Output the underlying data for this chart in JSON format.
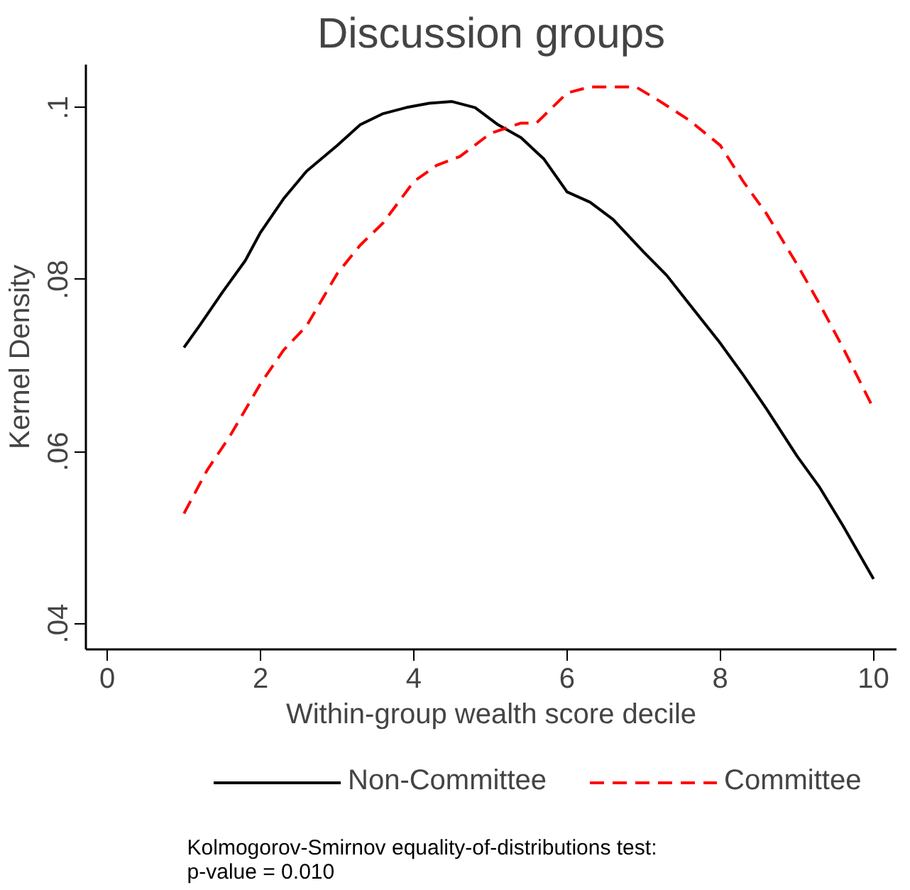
{
  "chart_data": {
    "type": "line",
    "title": "Discussion groups",
    "xlabel": "Within-group wealth score decile",
    "ylabel": "Kernel Density",
    "xlim": [
      -0.28,
      10.3
    ],
    "ylim": [
      0.037,
      0.105
    ],
    "xticks": [
      0,
      2,
      4,
      6,
      8,
      10
    ],
    "yticks": [
      {
        "value": 0.04,
        "label": ".04"
      },
      {
        "value": 0.06,
        "label": ".06"
      },
      {
        "value": 0.08,
        "label": ".08"
      },
      {
        "value": 0.1,
        "label": ".1"
      }
    ],
    "grid": false,
    "legend": "bottom",
    "annotations": [
      "Kolmogorov-Smirnov equality-of-distributions test:",
      "p-value = 0.010"
    ],
    "series": [
      {
        "name": "Non-Committee",
        "color": "#000000",
        "line_style": "solid",
        "x": [
          1,
          1.2,
          1.5,
          1.8,
          2,
          2.3,
          2.6,
          3,
          3.3,
          3.6,
          3.9,
          4.2,
          4.5,
          4.8,
          5.1,
          5.4,
          5.7,
          6,
          6.3,
          6.6,
          7,
          7.3,
          7.6,
          8,
          8.3,
          8.6,
          9,
          9.3,
          9.6,
          10
        ],
        "values": [
          0.0721,
          0.0746,
          0.0785,
          0.0822,
          0.0855,
          0.0894,
          0.0926,
          0.0956,
          0.098,
          0.0993,
          0.1,
          0.1005,
          0.1007,
          0.1,
          0.098,
          0.0965,
          0.094,
          0.0902,
          0.089,
          0.087,
          0.0832,
          0.0805,
          0.0771,
          0.0726,
          0.0689,
          0.065,
          0.0595,
          0.0558,
          0.0514,
          0.0452
        ]
      },
      {
        "name": "Committee",
        "color": "#ff0000",
        "line_style": "dashed",
        "x": [
          1,
          1.3,
          1.6,
          2,
          2.3,
          2.6,
          3,
          3.3,
          3.6,
          4,
          4.3,
          4.6,
          5,
          5.4,
          5.6,
          6,
          6.3,
          6.6,
          6.9,
          7.2,
          7.6,
          8,
          8.3,
          8.6,
          9,
          9.3,
          9.6,
          10
        ],
        "values": [
          0.0528,
          0.0578,
          0.0618,
          0.0679,
          0.0718,
          0.0746,
          0.0807,
          0.084,
          0.0866,
          0.0914,
          0.0933,
          0.0943,
          0.097,
          0.0982,
          0.0982,
          0.1017,
          0.1024,
          0.1024,
          0.1024,
          0.1008,
          0.0985,
          0.0956,
          0.0914,
          0.0877,
          0.0818,
          0.0771,
          0.0721,
          0.065
        ]
      }
    ]
  }
}
